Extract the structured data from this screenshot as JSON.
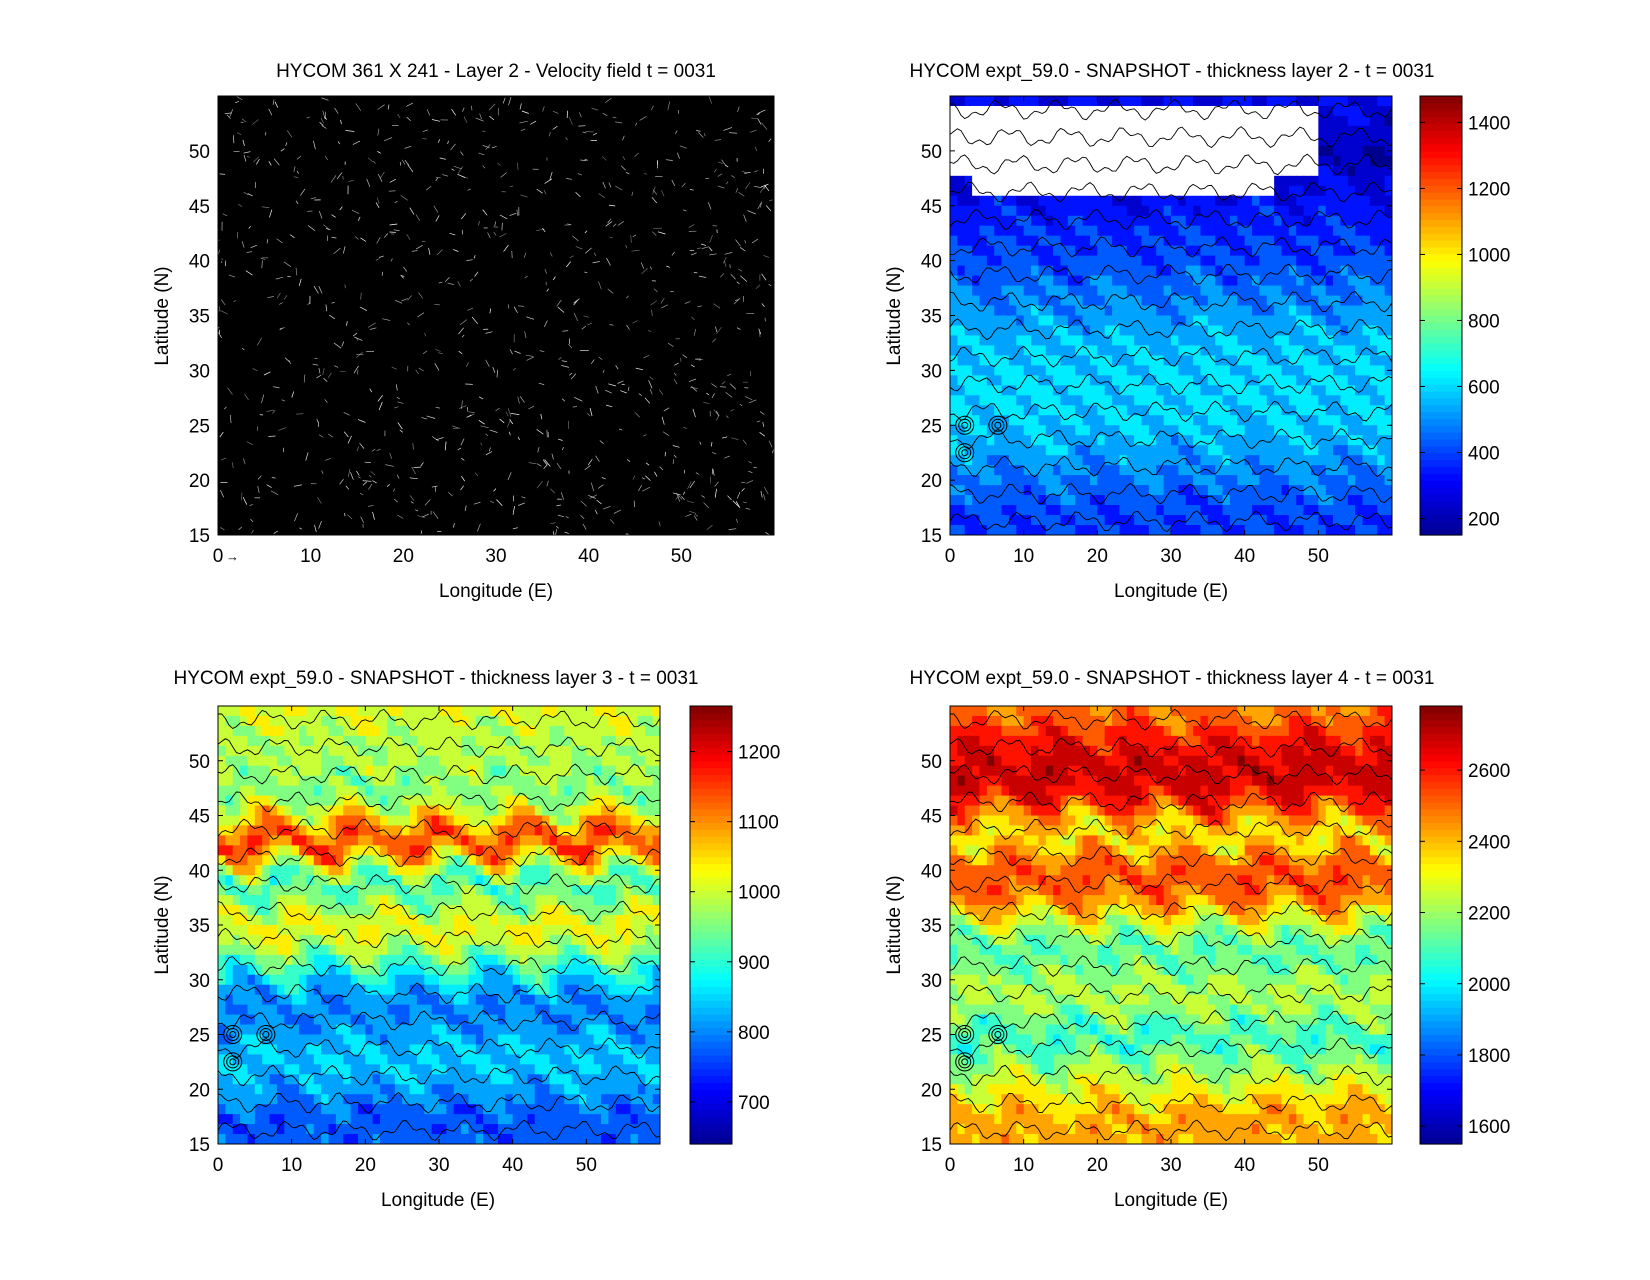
{
  "colors": {
    "jet": [
      "#00008f",
      "#0000ff",
      "#0080ff",
      "#00ffff",
      "#80ff80",
      "#ffff00",
      "#ff8000",
      "#ff0000",
      "#800000"
    ],
    "velocity_background": "#000000",
    "velocity_streaks": "#ffffff",
    "land_mask": "#ffffff"
  },
  "chart_data": [
    {
      "id": "velocity",
      "type": "quiver",
      "title": "HYCOM 361 X 241 - Layer 2 - Velocity field  t = 0031",
      "xlabel": "Longitude (E)",
      "ylabel": "Latitude (N)",
      "xlim": [
        0,
        60
      ],
      "ylim": [
        15,
        55
      ],
      "xticks": [
        0,
        10,
        20,
        30,
        40,
        50
      ],
      "yticks": [
        15,
        20,
        25,
        30,
        35,
        40,
        45,
        50
      ],
      "reference_arrow": "→"
    },
    {
      "id": "layer2",
      "type": "contourf",
      "title": "HYCOM expt_59.0 - SNAPSHOT - thickness layer 2 - t = 0031",
      "xlabel": "Longitude (E)",
      "ylabel": "Latitude (N)",
      "xlim": [
        0,
        60
      ],
      "ylim": [
        15,
        55
      ],
      "xticks": [
        0,
        10,
        20,
        30,
        40,
        50
      ],
      "yticks": [
        15,
        20,
        25,
        30,
        35,
        40,
        45,
        50
      ],
      "clim": [
        150,
        1480
      ],
      "colorbar_ticks": [
        200,
        400,
        600,
        800,
        1000,
        1200,
        1400
      ],
      "zonal_profile": [
        [
          15,
          380
        ],
        [
          18,
          420
        ],
        [
          21,
          500
        ],
        [
          24,
          560
        ],
        [
          27,
          610
        ],
        [
          30,
          590
        ],
        [
          33,
          560
        ],
        [
          36,
          500
        ],
        [
          39,
          430
        ],
        [
          42,
          380
        ],
        [
          45,
          330
        ],
        [
          48,
          250
        ],
        [
          50,
          200
        ],
        [
          53,
          270
        ],
        [
          55,
          310
        ]
      ],
      "masked_region": {
        "lon": [
          0,
          50
        ],
        "lat": [
          46,
          54
        ],
        "description": "white blank area"
      }
    },
    {
      "id": "layer3",
      "type": "contourf",
      "title": "HYCOM expt_59.0 - SNAPSHOT - thickness layer 3 - t = 0031",
      "xlabel": "Longitude (E)",
      "ylabel": "Latitude (N)",
      "xlim": [
        0,
        60
      ],
      "ylim": [
        15,
        55
      ],
      "xticks": [
        0,
        10,
        20,
        30,
        40,
        50
      ],
      "yticks": [
        15,
        20,
        25,
        30,
        35,
        40,
        45,
        50
      ],
      "clim": [
        640,
        1265
      ],
      "colorbar_ticks": [
        700,
        800,
        900,
        1000,
        1100,
        1200
      ],
      "zonal_profile": [
        [
          15,
          780
        ],
        [
          17,
          760
        ],
        [
          19,
          800
        ],
        [
          21,
          830
        ],
        [
          23,
          850
        ],
        [
          25,
          820
        ],
        [
          27,
          790
        ],
        [
          29,
          820
        ],
        [
          31,
          900
        ],
        [
          33,
          990
        ],
        [
          35,
          1040
        ],
        [
          37,
          960
        ],
        [
          39,
          900
        ],
        [
          41,
          1050
        ],
        [
          42.5,
          1170
        ],
        [
          44,
          1100
        ],
        [
          46,
          980
        ],
        [
          48,
          940
        ],
        [
          50,
          1000
        ],
        [
          52,
          970
        ],
        [
          54,
          1020
        ],
        [
          55,
          1010
        ]
      ]
    },
    {
      "id": "layer4",
      "type": "contourf",
      "title": "HYCOM expt_59.0 - SNAPSHOT - thickness layer 4 - t = 0031",
      "xlabel": "Longitude (E)",
      "ylabel": "Latitude (N)",
      "xlim": [
        0,
        60
      ],
      "ylim": [
        15,
        55
      ],
      "xticks": [
        0,
        10,
        20,
        30,
        40,
        50
      ],
      "yticks": [
        15,
        20,
        25,
        30,
        35,
        40,
        45,
        50
      ],
      "clim": [
        1550,
        2780
      ],
      "colorbar_ticks": [
        1600,
        1800,
        2000,
        2200,
        2400,
        2600
      ],
      "zonal_profile": [
        [
          15,
          2400
        ],
        [
          17,
          2450
        ],
        [
          19,
          2350
        ],
        [
          21,
          2250
        ],
        [
          23,
          2150
        ],
        [
          25,
          2050
        ],
        [
          27,
          2200
        ],
        [
          29,
          2250
        ],
        [
          31,
          2150
        ],
        [
          33,
          2100
        ],
        [
          35,
          2250
        ],
        [
          37,
          2450
        ],
        [
          39,
          2550
        ],
        [
          41,
          2500
        ],
        [
          43,
          2300
        ],
        [
          45,
          2450
        ],
        [
          47,
          2650
        ],
        [
          49,
          2700
        ],
        [
          51,
          2650
        ],
        [
          53,
          2550
        ],
        [
          55,
          2450
        ]
      ]
    }
  ]
}
